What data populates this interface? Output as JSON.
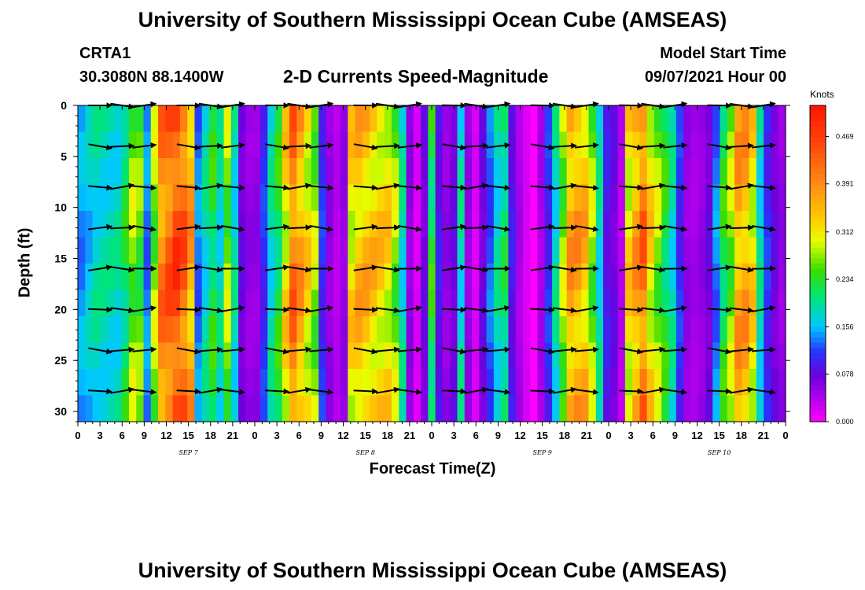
{
  "header": {
    "title": "University of Southern Mississippi Ocean Cube (AMSEAS)",
    "station_id": "CRTA1",
    "station_coords": "30.3080N  88.1400W",
    "subtitle": "2-D Currents Speed-Magnitude",
    "model_start_label": "Model Start Time",
    "model_start_value": "09/07/2021 Hour 00"
  },
  "footer": {
    "title": "University of Southern Mississippi Ocean Cube (AMSEAS)"
  },
  "chart_data": {
    "type": "heatmap",
    "title": "2-D Currents Speed-Magnitude",
    "xlabel": "Forecast Time(Z)",
    "ylabel": "Depth (ft)",
    "x_tick_labels": [
      "0",
      "3",
      "6",
      "9",
      "12",
      "15",
      "18",
      "21",
      "0",
      "3",
      "6",
      "9",
      "12",
      "15",
      "18",
      "21",
      "0",
      "3",
      "6",
      "9",
      "12",
      "15",
      "18",
      "21",
      "0",
      "3",
      "6",
      "9",
      "12",
      "15",
      "18",
      "21",
      "0"
    ],
    "day_labels": [
      {
        "label": "SEP 7",
        "hour": 15
      },
      {
        "label": "SEP 8",
        "hour": 39
      },
      {
        "label": "SEP 9",
        "hour": 63
      },
      {
        "label": "SEP 10",
        "hour": 87
      }
    ],
    "xlim": [
      0,
      96
    ],
    "ylim": [
      31,
      0
    ],
    "y_ticks": [
      0,
      5,
      10,
      15,
      20,
      25,
      30
    ],
    "colorbar": {
      "title": "Knots",
      "range": [
        0.0,
        0.52
      ],
      "tick_labels": [
        "0.469",
        "0.391",
        "0.312",
        "0.234",
        "0.156",
        "0.078",
        "0.000"
      ],
      "tick_values": [
        0.469,
        0.391,
        0.312,
        0.234,
        0.156,
        0.078,
        0.0
      ]
    },
    "speed_by_hour_knots": [
      0.16,
      0.18,
      0.2,
      0.2,
      0.2,
      0.2,
      0.24,
      0.3,
      0.28,
      0.15,
      0.3,
      0.44,
      0.47,
      0.5,
      0.47,
      0.4,
      0.15,
      0.2,
      0.25,
      0.2,
      0.3,
      0.2,
      0.08,
      0.06,
      0.06,
      0.12,
      0.2,
      0.25,
      0.35,
      0.45,
      0.4,
      0.35,
      0.3,
      0.12,
      0.06,
      0.04,
      0.06,
      0.35,
      0.38,
      0.38,
      0.37,
      0.36,
      0.35,
      0.3,
      0.2,
      0.06,
      0.02,
      0.08,
      0.25,
      0.1,
      0.06,
      0.08,
      0.2,
      0.06,
      0.02,
      0.08,
      0.14,
      0.2,
      0.23,
      0.1,
      0.05,
      0.02,
      0.0,
      0.05,
      0.12,
      0.2,
      0.3,
      0.4,
      0.4,
      0.38,
      0.3,
      0.2,
      0.1,
      0.08,
      0.04,
      0.35,
      0.4,
      0.45,
      0.35,
      0.3,
      0.25,
      0.2,
      0.12,
      0.06,
      0.05,
      0.06,
      0.08,
      0.15,
      0.25,
      0.3,
      0.4,
      0.4,
      0.35,
      0.2,
      0.12,
      0.08,
      0.06
    ],
    "vector_rows_depth_ft": [
      0,
      4,
      8,
      12,
      16,
      20,
      24,
      28
    ],
    "vector_cols_hour": [
      3,
      6,
      9,
      15,
      18,
      21,
      27,
      30,
      33,
      39,
      42,
      45,
      51,
      54,
      57,
      63,
      66,
      69,
      75,
      78,
      81,
      87,
      90,
      93
    ]
  }
}
